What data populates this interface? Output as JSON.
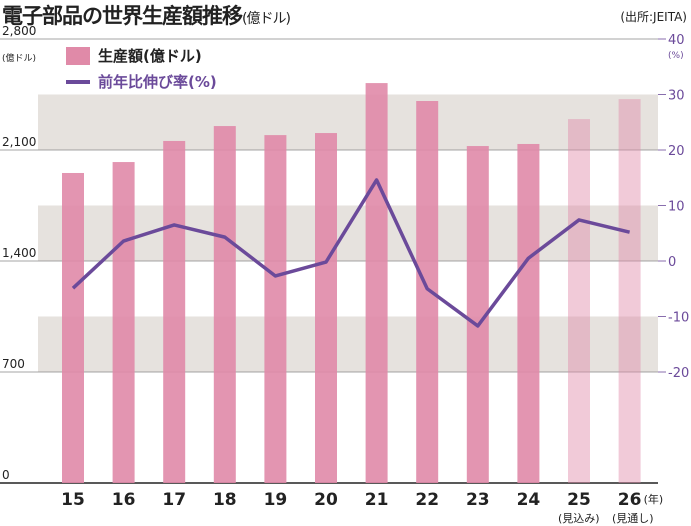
{
  "chart_data": {
    "type": "bar+line",
    "title": "電子部品の世界生産額推移",
    "title_unit": "(億ドル)",
    "source": "(出所:JEITA)",
    "categories": [
      "15",
      "16",
      "17",
      "18",
      "19",
      "20",
      "21",
      "22",
      "23",
      "24",
      "25",
      "26"
    ],
    "x_unit": "(年)",
    "x_notes": {
      "25": "(見込み)",
      "26": "(見通し)"
    },
    "left_axis": {
      "label": "(億ドル)",
      "ylim": [
        0,
        2800
      ],
      "ticks": [
        "0",
        "700",
        "1,400",
        "2,100",
        "2,800"
      ]
    },
    "right_axis": {
      "label": "(%)",
      "ylim": [
        -40,
        40
      ],
      "ticks": [
        "-20",
        "-10",
        "0",
        "10",
        "20",
        "30",
        "40"
      ]
    },
    "series": [
      {
        "name": "生産額(億ドル)",
        "type": "bar",
        "axis": "left",
        "color": "#e08aa8",
        "values": [
          1955,
          2024,
          2157,
          2251,
          2194,
          2207,
          2522,
          2409,
          2125,
          2138,
          2295,
          2421
        ],
        "light_from_index": 10
      },
      {
        "name": "前年比伸び率(%)",
        "type": "line",
        "axis": "right",
        "color": "#6b4a9a",
        "values": [
          -4.9,
          3.6,
          6.5,
          4.3,
          -2.7,
          -0.2,
          14.6,
          -5.0,
          -11.7,
          0.5,
          7.4,
          5.2
        ]
      }
    ],
    "bands_right": [
      [
        20,
        30
      ],
      [
        0,
        10
      ],
      [
        -20,
        -10
      ]
    ]
  }
}
